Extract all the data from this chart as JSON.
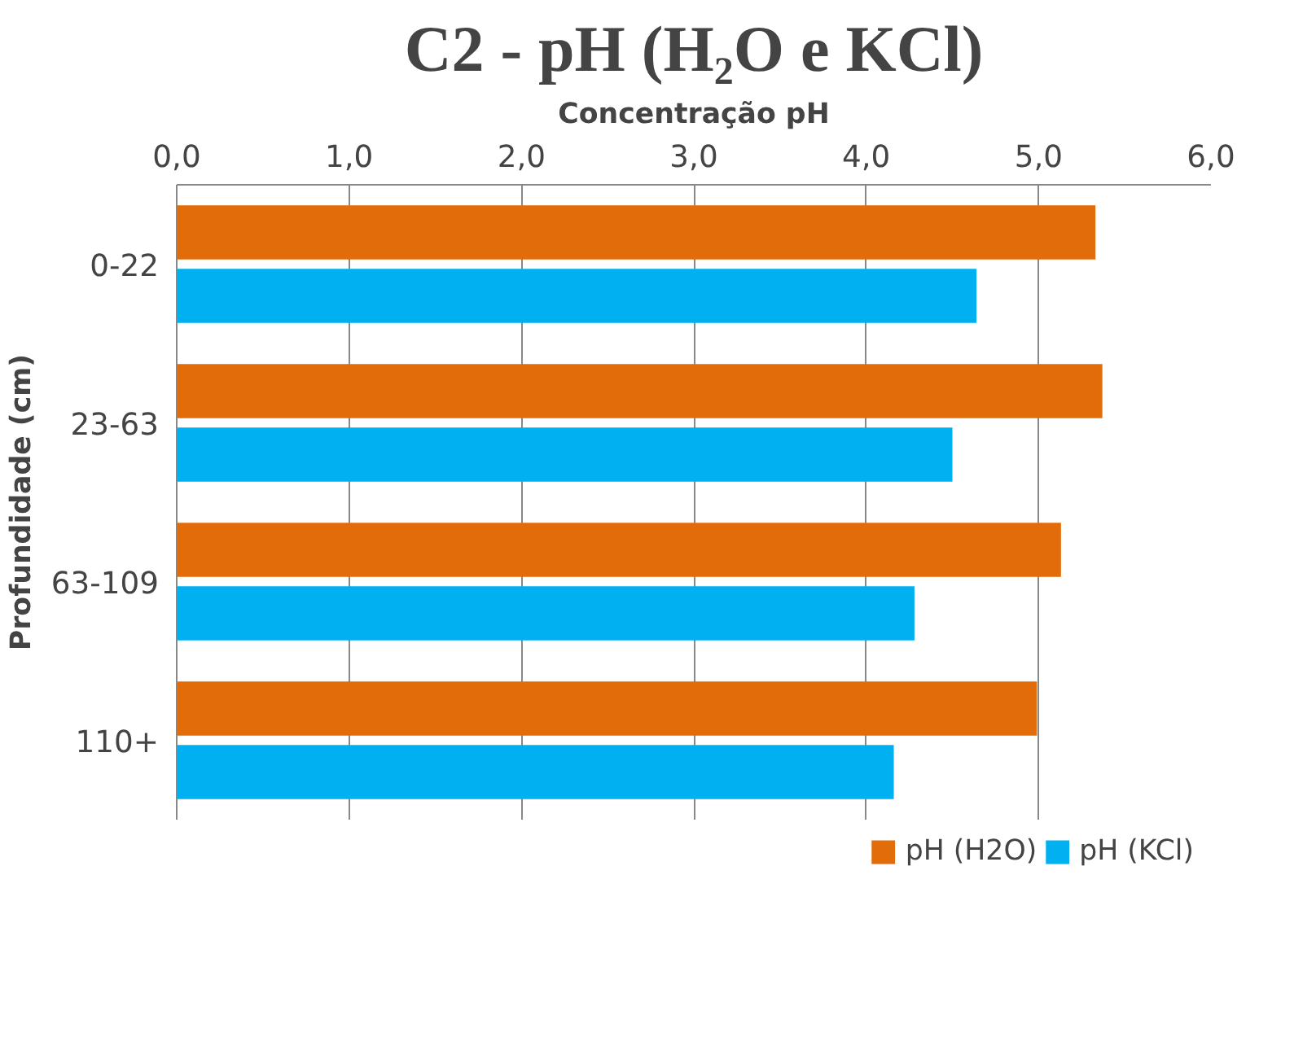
{
  "chart_data": {
    "type": "bar",
    "orientation": "horizontal",
    "title": "C2 - pH (H₂O e KCl)",
    "xlabel": "Concentração pH",
    "ylabel": "Profundidade (cm)",
    "categories": [
      "0-22",
      "23-63",
      "63-109",
      "110+"
    ],
    "series": [
      {
        "name": "pH (H2O)",
        "color": "#e36c0a",
        "values": [
          5.33,
          5.37,
          5.13,
          4.99
        ]
      },
      {
        "name": "pH (KCl)",
        "color": "#00b0f0",
        "values": [
          4.64,
          4.5,
          4.28,
          4.16
        ]
      }
    ],
    "xlim": [
      0,
      6
    ],
    "xticks": [
      {
        "value": 0,
        "label": "0,0"
      },
      {
        "value": 1,
        "label": "1,0"
      },
      {
        "value": 2,
        "label": "2,0"
      },
      {
        "value": 3,
        "label": "3,0"
      },
      {
        "value": 4,
        "label": "4,0"
      },
      {
        "value": 5,
        "label": "5,0"
      },
      {
        "value": 6,
        "label": "6,0"
      }
    ],
    "grid": "x",
    "legend": "bottom"
  }
}
